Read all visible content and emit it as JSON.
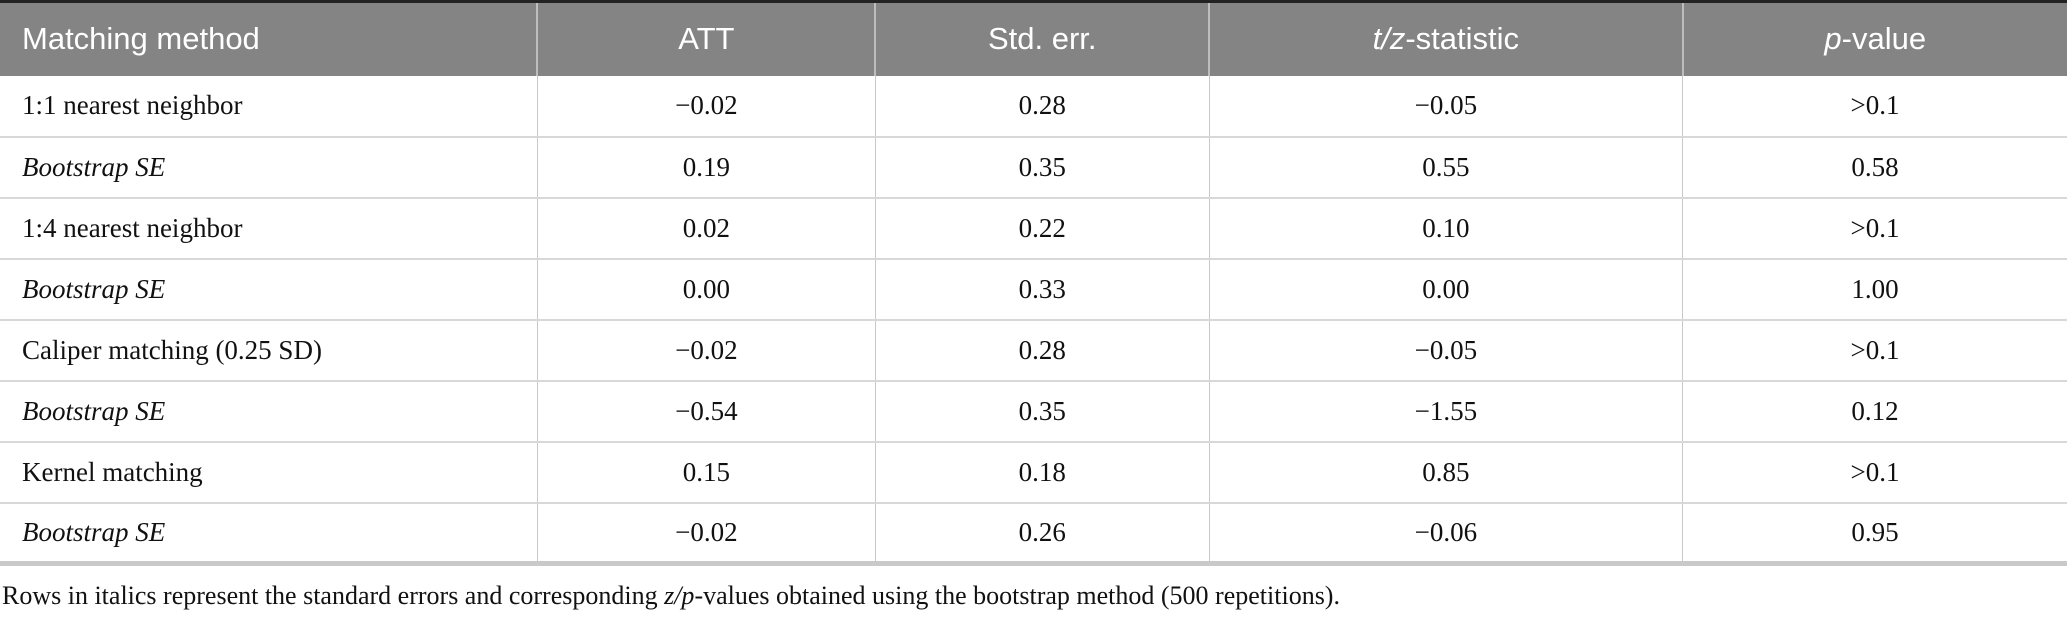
{
  "colors": {
    "header_background": "#848484",
    "header_text": "#ffffff",
    "body_text": "#111111",
    "grid_line": "#c9c9c9",
    "top_rule": "#222222",
    "bottom_rule": "#c9c9c9"
  },
  "table": {
    "header": {
      "method": "Matching method",
      "att": "ATT",
      "std_err": "Std. err.",
      "tz_italic": "t/z",
      "tz_rest": "-statistic",
      "p_italic": "p",
      "p_rest": "-value"
    },
    "rows": [
      {
        "method": "1:1 nearest neighbor",
        "italic": false,
        "values": [
          "−0.02",
          "0.28",
          "−0.05",
          ">0.1"
        ]
      },
      {
        "method": "Bootstrap SE",
        "italic": true,
        "values": [
          "0.19",
          "0.35",
          "0.55",
          "0.58"
        ]
      },
      {
        "method": "1:4 nearest neighbor",
        "italic": false,
        "values": [
          "0.02",
          "0.22",
          "0.10",
          ">0.1"
        ]
      },
      {
        "method": "Bootstrap SE",
        "italic": true,
        "values": [
          "0.00",
          "0.33",
          "0.00",
          "1.00"
        ]
      },
      {
        "method": "Caliper matching (0.25 SD)",
        "italic": false,
        "values": [
          "−0.02",
          "0.28",
          "−0.05",
          ">0.1"
        ]
      },
      {
        "method": "Bootstrap SE",
        "italic": true,
        "values": [
          "−0.54",
          "0.35",
          "−1.55",
          "0.12"
        ]
      },
      {
        "method": "Kernel matching",
        "italic": false,
        "values": [
          "0.15",
          "0.18",
          "0.85",
          ">0.1"
        ]
      },
      {
        "method": "Bootstrap SE",
        "italic": true,
        "values": [
          "−0.02",
          "0.26",
          "−0.06",
          "0.95"
        ]
      }
    ],
    "footnote": {
      "part1": "Rows in italics represent the standard errors and corresponding ",
      "italic": "z/p",
      "part2": "-values obtained using the bootstrap method (500 repetitions)."
    }
  }
}
